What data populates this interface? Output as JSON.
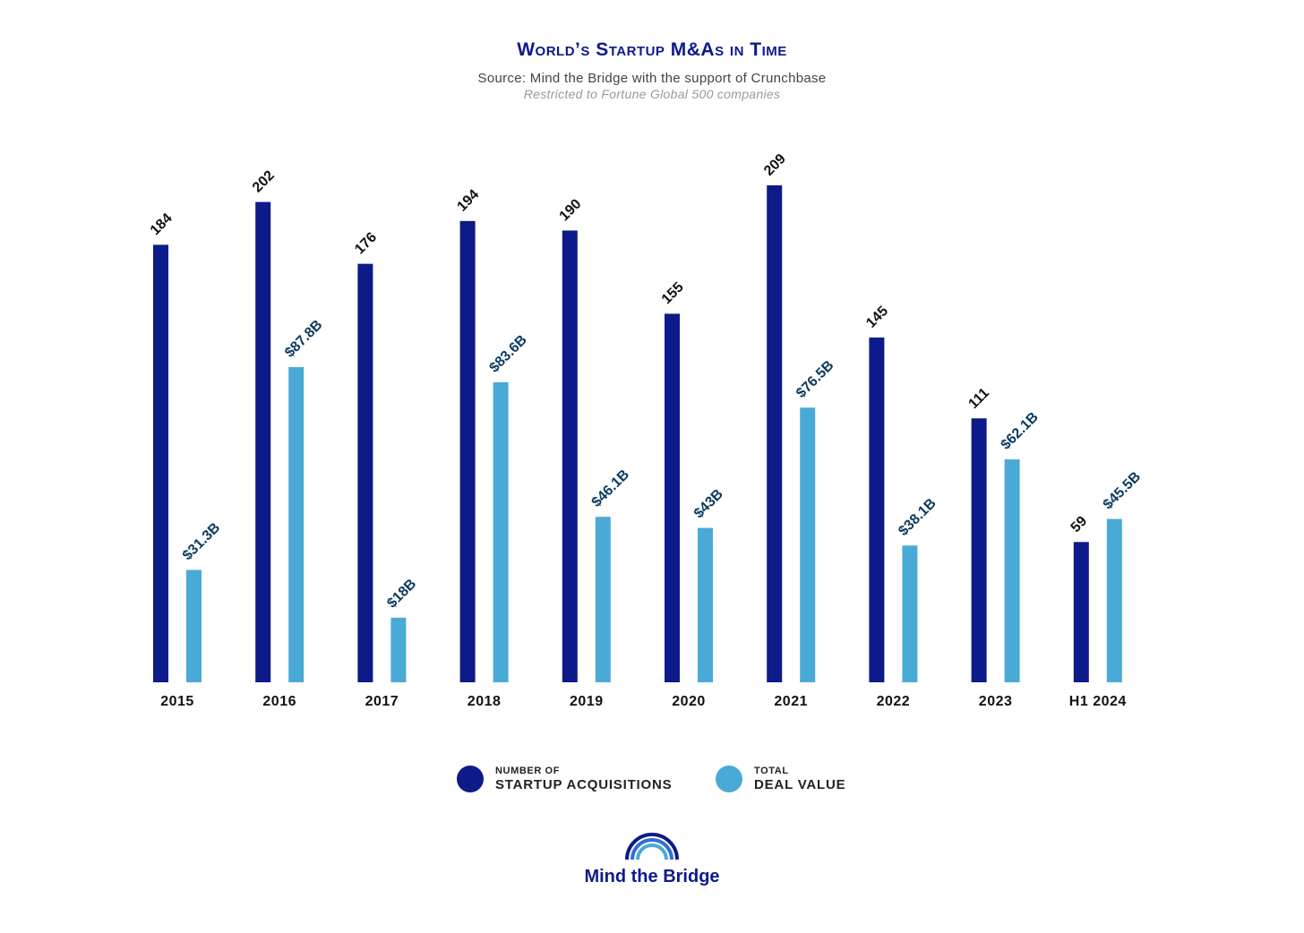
{
  "title": "World’s Startup M&As in Time",
  "subtitle": "Source: Mind the Bridge with the support of Crunchbase",
  "note": "Restricted to Fortune Global 500 companies",
  "colors": {
    "acquisitions": "#0d1a8a",
    "deal_value": "#4aaad6",
    "value_label": "#0b3a5e",
    "count_label": "#111111",
    "axis_label": "#111111"
  },
  "legend": [
    {
      "small": "NUMBER OF",
      "big": "STARTUP ACQUISITIONS"
    },
    {
      "small": "TOTAL",
      "big": "DEAL VALUE"
    }
  ],
  "logo": {
    "text": "Mind the Bridge",
    "icon": "arch-logo-icon"
  },
  "chart_data": {
    "type": "bar",
    "categories": [
      "2015",
      "2016",
      "2017",
      "2018",
      "2019",
      "2020",
      "2021",
      "2022",
      "2023",
      "H1 2024"
    ],
    "series": [
      {
        "name": "NUMBER OF STARTUP ACQUISITIONS",
        "values": [
          184,
          202,
          176,
          194,
          190,
          155,
          209,
          145,
          111,
          59
        ],
        "labels": [
          "184",
          "202",
          "176",
          "194",
          "190",
          "155",
          "209",
          "145",
          "111",
          "59"
        ]
      },
      {
        "name": "TOTAL DEAL VALUE",
        "values": [
          31.3,
          87.8,
          18,
          83.6,
          46.1,
          43,
          76.5,
          38.1,
          62.1,
          45.5
        ],
        "labels": [
          "$31.3B",
          "$87.8B",
          "$18B",
          "$83.6B",
          "$46.1B",
          "$43B",
          "$76.5B",
          "$38.1B",
          "$62.1B",
          "$45.5B"
        ]
      }
    ],
    "grid": false,
    "legend_position": "bottom"
  }
}
